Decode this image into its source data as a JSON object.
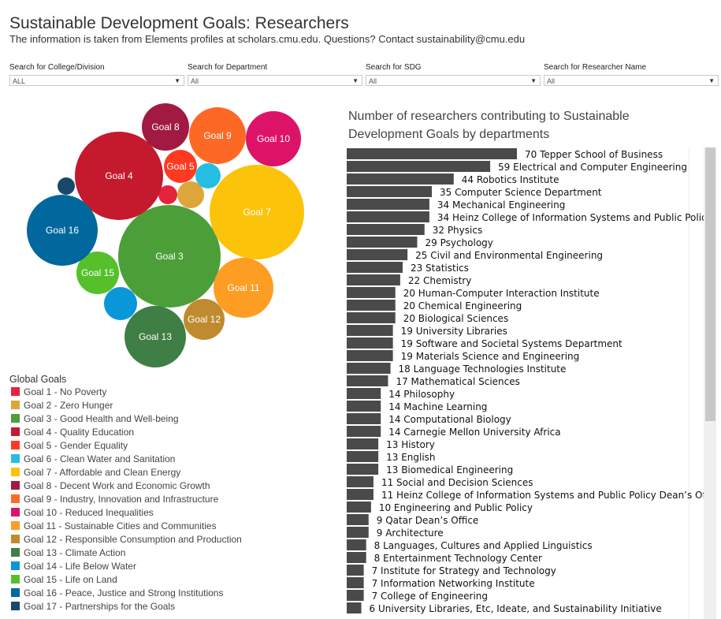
{
  "header": {
    "title": "Sustainable Development Goals: Researchers",
    "subtitle": "The information is taken from Elements profiles at scholars.cmu.edu. Questions? Contact sustainability@cmu.edu"
  },
  "filters": [
    {
      "label": "Search for College/Division",
      "value": "ALL"
    },
    {
      "label": "Search for Department",
      "value": "All"
    },
    {
      "label": "Search for SDG",
      "value": "All"
    },
    {
      "label": "Search for Researcher Name",
      "value": "All"
    }
  ],
  "legend": {
    "title": "Global Goals",
    "items": [
      {
        "label": "Goal 1 - No Poverty",
        "color": "#e5243b"
      },
      {
        "label": "Goal 2 - Zero Hunger",
        "color": "#dda63a"
      },
      {
        "label": "Goal 3 - Good Health and Well-being",
        "color": "#4c9f38"
      },
      {
        "label": "Goal 4 - Quality Education",
        "color": "#c5192d"
      },
      {
        "label": "Goal 5 - Gender Equality",
        "color": "#ff3a21"
      },
      {
        "label": "Goal 6 - Clean Water and Sanitation",
        "color": "#26bde2"
      },
      {
        "label": "Goal 7 - Affordable and Clean Energy",
        "color": "#fcc30b"
      },
      {
        "label": "Goal 8 - Decent Work and Economic Growth",
        "color": "#a21942"
      },
      {
        "label": "Goal 9 - Industry, Innovation and Infrastructure",
        "color": "#fd6925"
      },
      {
        "label": "Goal 10 - Reduced Inequalities",
        "color": "#dd1367"
      },
      {
        "label": "Goal 11 - Sustainable Cities and Communities",
        "color": "#fd9d24"
      },
      {
        "label": "Goal 12 - Responsible Consumption and Production",
        "color": "#bf8b2e"
      },
      {
        "label": "Goal 13 - Climate Action",
        "color": "#3f7e44"
      },
      {
        "label": "Goal 14 - Life Below Water",
        "color": "#0a97d9"
      },
      {
        "label": "Goal 15 - Life on Land",
        "color": "#56c02b"
      },
      {
        "label": "Goal 16 - Peace, Justice and Strong Institutions",
        "color": "#00689d"
      },
      {
        "label": "Goal 17 - Partnerships for the Goals",
        "color": "#19486a"
      }
    ]
  },
  "chart_data": [
    {
      "type": "bubble",
      "bubbles": [
        {
          "goal": 1,
          "label": "",
          "color": "#e5243b"
        },
        {
          "goal": 2,
          "label": "",
          "color": "#dda63a"
        },
        {
          "goal": 3,
          "label": "Goal 3",
          "color": "#4c9f38"
        },
        {
          "goal": 4,
          "label": "Goal 4",
          "color": "#c5192d"
        },
        {
          "goal": 5,
          "label": "Goal 5",
          "color": "#ff3a21"
        },
        {
          "goal": 6,
          "label": "",
          "color": "#26bde2"
        },
        {
          "goal": 7,
          "label": "Goal 7",
          "color": "#fcc30b"
        },
        {
          "goal": 8,
          "label": "Goal 8",
          "color": "#a21942"
        },
        {
          "goal": 9,
          "label": "Goal 9",
          "color": "#fd6925"
        },
        {
          "goal": 10,
          "label": "Goal 10",
          "color": "#dd1367"
        },
        {
          "goal": 11,
          "label": "Goal 11",
          "color": "#fd9d24"
        },
        {
          "goal": 12,
          "label": "Goal 12",
          "color": "#bf8b2e"
        },
        {
          "goal": 13,
          "label": "Goal 13",
          "color": "#3f7e44"
        },
        {
          "goal": 14,
          "label": "",
          "color": "#0a97d9"
        },
        {
          "goal": 15,
          "label": "Goal 15",
          "color": "#56c02b"
        },
        {
          "goal": 16,
          "label": "Goal 16",
          "color": "#00689d"
        },
        {
          "goal": 17,
          "label": "",
          "color": "#19486a"
        }
      ]
    },
    {
      "type": "bar",
      "orientation": "horizontal",
      "title": "Number of researchers contributing to Sustainable Development Goals by departments",
      "bar_color": "#4a4a4a",
      "categories": [
        "Tepper School of Business",
        "Electrical and Computer Engineering",
        "Robotics Institute",
        "Computer Science Department",
        "Mechanical Engineering",
        "Heinz College of Information Systems and Public Policy",
        "Physics",
        "Psychology",
        "Civil and Environmental Engineering",
        "Statistics",
        "Chemistry",
        "Human-Computer Interaction Institute",
        "Chemical Engineering",
        "Biological Sciences",
        "University Libraries",
        "Software and Societal Systems Department",
        "Materials Science and Engineering",
        "Language Technologies Institute",
        "Mathematical Sciences",
        "Philosophy",
        "Machine Learning",
        "Computational Biology",
        "Carnegie Mellon University Africa",
        "History",
        "English",
        "Biomedical Engineering",
        "Social and Decision Sciences",
        "Heinz College of Information Systems and Public Policy Dean’s Office",
        "Engineering and Public Policy",
        "Qatar Dean’s Office",
        "Architecture",
        "Languages, Cultures and Applied Linguistics",
        "Entertainment Technology Center",
        "Institute for Strategy and Technology",
        "Information Networking Institute",
        "College of Engineering",
        "University Libraries, Etc, Ideate, and Sustainability Initiative"
      ],
      "values": [
        70,
        59,
        44,
        35,
        34,
        34,
        32,
        29,
        25,
        23,
        22,
        20,
        20,
        20,
        19,
        19,
        19,
        18,
        17,
        14,
        14,
        14,
        14,
        13,
        13,
        13,
        11,
        11,
        10,
        9,
        9,
        8,
        8,
        7,
        7,
        7,
        6
      ]
    }
  ]
}
